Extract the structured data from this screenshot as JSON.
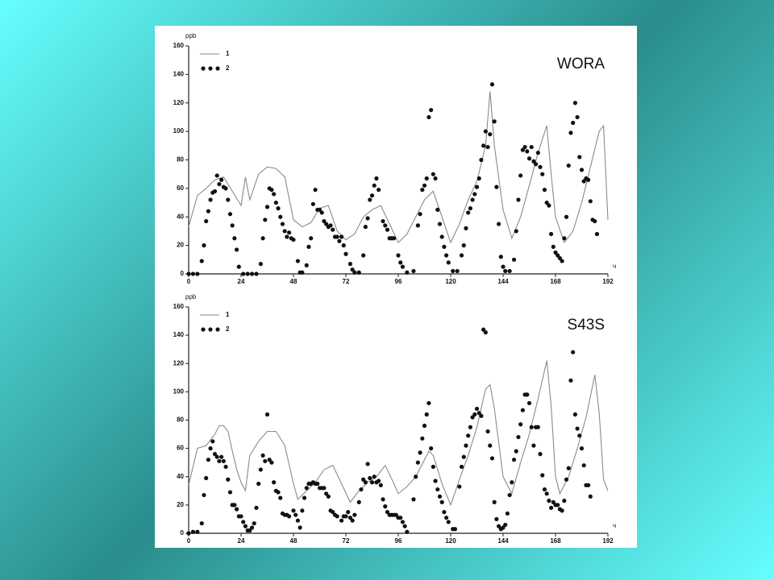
{
  "chart_data": [
    {
      "type": "line",
      "title": "WORA",
      "ylabel": "ppb",
      "xlabel": "ч",
      "xlim": [
        0,
        192
      ],
      "xticks": [
        0,
        24,
        48,
        72,
        96,
        120,
        144,
        168,
        192
      ],
      "ylim": [
        0,
        160
      ],
      "yticks": [
        0,
        20,
        40,
        60,
        80,
        100,
        120,
        140,
        160
      ],
      "series": [
        {
          "name": "1",
          "color": "#8a8a8a",
          "style": "line",
          "x": [
            0,
            4,
            8,
            12,
            16,
            20,
            24,
            26,
            28,
            32,
            36,
            40,
            44,
            48,
            52,
            56,
            60,
            64,
            68,
            72,
            76,
            80,
            84,
            88,
            92,
            96,
            100,
            104,
            108,
            112,
            116,
            120,
            124,
            128,
            132,
            136,
            138,
            140,
            144,
            148,
            152,
            156,
            160,
            164,
            166,
            168,
            172,
            176,
            180,
            184,
            188,
            190,
            192
          ],
          "values": [
            33,
            55,
            60,
            66,
            68,
            58,
            48,
            68,
            52,
            70,
            75,
            74,
            68,
            38,
            33,
            36,
            46,
            48,
            30,
            24,
            28,
            40,
            45,
            48,
            35,
            22,
            28,
            40,
            52,
            58,
            40,
            22,
            35,
            52,
            65,
            90,
            128,
            90,
            45,
            25,
            40,
            62,
            85,
            104,
            70,
            40,
            22,
            30,
            50,
            75,
            100,
            104,
            38
          ]
        },
        {
          "name": "2",
          "color": "#111111",
          "style": "dots",
          "x": [
            0,
            2,
            4,
            6,
            7,
            8,
            9,
            10,
            11,
            12,
            13,
            14,
            15,
            16,
            17,
            18,
            19,
            20,
            21,
            22,
            23,
            25,
            27,
            29,
            31,
            33,
            34,
            35,
            36,
            37,
            38,
            39,
            40,
            41,
            42,
            43,
            44,
            45,
            46,
            47,
            48,
            50,
            51,
            52,
            54,
            55,
            56,
            57,
            58,
            59,
            60,
            61,
            62,
            63,
            64,
            65,
            66,
            67,
            68,
            69,
            70,
            71,
            72,
            74,
            75,
            76,
            78,
            80,
            81,
            82,
            83,
            84,
            85,
            86,
            87,
            89,
            90,
            91,
            92,
            93,
            94,
            96,
            97,
            98,
            100,
            103,
            105,
            106,
            107,
            108,
            109,
            110,
            111,
            112,
            113,
            114,
            115,
            116,
            117,
            118,
            119,
            121,
            123,
            125,
            126,
            127,
            128,
            129,
            130,
            131,
            132,
            133,
            134,
            135,
            136,
            137,
            138,
            139,
            140,
            141,
            142,
            143,
            144,
            145,
            147,
            149,
            150,
            151,
            152,
            153,
            154,
            155,
            156,
            157,
            158,
            159,
            160,
            161,
            162,
            163,
            164,
            165,
            166,
            167,
            168,
            169,
            170,
            171,
            172,
            173,
            174,
            175,
            176,
            177,
            178,
            179,
            180,
            181,
            182,
            183,
            184,
            185,
            186,
            187
          ],
          "values": [
            0,
            0,
            0,
            9,
            20,
            37,
            44,
            52,
            57,
            58,
            69,
            63,
            66,
            61,
            60,
            52,
            42,
            34,
            25,
            17,
            5,
            0,
            0,
            0,
            0,
            7,
            25,
            38,
            47,
            60,
            59,
            56,
            50,
            46,
            40,
            35,
            30,
            26,
            29,
            25,
            24,
            9,
            1,
            1,
            6,
            19,
            25,
            49,
            59,
            45,
            45,
            43,
            37,
            35,
            33,
            34,
            31,
            26,
            26,
            23,
            26,
            20,
            14,
            7,
            3,
            1,
            1,
            13,
            33,
            39,
            52,
            55,
            62,
            67,
            59,
            37,
            34,
            31,
            25,
            25,
            25,
            13,
            8,
            5,
            1,
            2,
            34,
            42,
            59,
            62,
            67,
            110,
            115,
            70,
            67,
            45,
            35,
            26,
            19,
            13,
            8,
            2,
            2,
            13,
            20,
            32,
            43,
            46,
            52,
            56,
            61,
            67,
            80,
            90,
            100,
            89,
            98,
            133,
            107,
            61,
            35,
            12,
            5,
            2,
            2,
            10,
            30,
            52,
            69,
            87,
            89,
            86,
            81,
            89,
            79,
            77,
            85,
            75,
            70,
            59,
            50,
            48,
            28,
            19,
            15,
            13,
            11,
            9,
            25,
            40,
            76,
            99,
            106,
            120,
            110,
            82,
            73,
            65,
            67,
            66,
            51,
            38,
            37,
            28
          ]
        }
      ]
    },
    {
      "type": "line",
      "title": "S43S",
      "ylabel": "ppb",
      "xlabel": "ч",
      "xlim": [
        0,
        192
      ],
      "xticks": [
        0,
        24,
        48,
        72,
        96,
        120,
        144,
        168,
        192
      ],
      "ylim": [
        0,
        160
      ],
      "yticks": [
        0,
        20,
        40,
        60,
        80,
        100,
        120,
        140,
        160
      ],
      "series": [
        {
          "name": "1",
          "color": "#8a8a8a",
          "style": "line",
          "x": [
            0,
            4,
            8,
            12,
            14,
            16,
            18,
            20,
            22,
            24,
            26,
            28,
            32,
            36,
            40,
            44,
            48,
            50,
            54,
            58,
            62,
            66,
            70,
            74,
            78,
            82,
            86,
            90,
            94,
            96,
            100,
            104,
            108,
            110,
            112,
            116,
            120,
            124,
            128,
            132,
            136,
            138,
            140,
            144,
            148,
            152,
            156,
            160,
            164,
            166,
            168,
            170,
            174,
            178,
            182,
            186,
            188,
            190,
            192
          ],
          "values": [
            34,
            60,
            62,
            70,
            76,
            76,
            72,
            58,
            45,
            36,
            30,
            55,
            65,
            72,
            72,
            62,
            35,
            24,
            30,
            36,
            45,
            48,
            35,
            22,
            30,
            36,
            40,
            48,
            35,
            28,
            33,
            40,
            52,
            58,
            55,
            35,
            20,
            38,
            55,
            75,
            102,
            105,
            88,
            40,
            28,
            50,
            70,
            95,
            122,
            90,
            40,
            28,
            40,
            60,
            82,
            112,
            85,
            38,
            30
          ]
        },
        {
          "name": "2",
          "color": "#111111",
          "style": "dots",
          "x": [
            0,
            2,
            4,
            6,
            7,
            8,
            9,
            10,
            11,
            12,
            13,
            14,
            15,
            16,
            17,
            18,
            19,
            20,
            21,
            22,
            23,
            24,
            25,
            26,
            27,
            28,
            29,
            30,
            31,
            32,
            33,
            34,
            35,
            36,
            37,
            38,
            39,
            40,
            41,
            42,
            43,
            44,
            45,
            46,
            48,
            49,
            50,
            51,
            52,
            53,
            54,
            55,
            56,
            57,
            58,
            59,
            60,
            61,
            62,
            63,
            64,
            65,
            66,
            67,
            68,
            70,
            71,
            72,
            73,
            74,
            75,
            76,
            78,
            79,
            80,
            81,
            82,
            83,
            84,
            85,
            86,
            87,
            88,
            89,
            90,
            91,
            92,
            93,
            94,
            95,
            96,
            97,
            98,
            99,
            100,
            103,
            104,
            105,
            106,
            107,
            108,
            109,
            110,
            111,
            112,
            113,
            114,
            115,
            116,
            117,
            118,
            119,
            121,
            122,
            124,
            125,
            126,
            127,
            128,
            129,
            130,
            131,
            132,
            133,
            134,
            135,
            136,
            137,
            138,
            139,
            140,
            141,
            142,
            143,
            144,
            145,
            146,
            147,
            148,
            149,
            150,
            151,
            152,
            153,
            154,
            155,
            156,
            157,
            158,
            159,
            160,
            161,
            162,
            163,
            164,
            165,
            166,
            167,
            168,
            169,
            170,
            171,
            172,
            173,
            174,
            175,
            176,
            177,
            178,
            179,
            180,
            181,
            182,
            183,
            184
          ],
          "values": [
            0,
            1,
            1,
            7,
            27,
            39,
            52,
            60,
            65,
            56,
            54,
            51,
            54,
            51,
            47,
            38,
            29,
            20,
            20,
            17,
            12,
            12,
            8,
            5,
            2,
            2,
            4,
            7,
            18,
            35,
            45,
            55,
            51,
            84,
            52,
            50,
            36,
            30,
            29,
            25,
            14,
            13,
            13,
            12,
            16,
            13,
            9,
            4,
            16,
            25,
            32,
            35,
            35,
            36,
            35,
            35,
            32,
            32,
            32,
            28,
            26,
            16,
            15,
            13,
            12,
            9,
            12,
            12,
            15,
            11,
            9,
            13,
            22,
            31,
            38,
            36,
            49,
            39,
            36,
            40,
            36,
            37,
            34,
            24,
            19,
            15,
            13,
            13,
            13,
            13,
            11,
            11,
            8,
            5,
            1,
            24,
            40,
            50,
            57,
            67,
            76,
            84,
            92,
            60,
            47,
            37,
            31,
            26,
            22,
            15,
            11,
            8,
            3,
            3,
            33,
            47,
            54,
            62,
            69,
            75,
            82,
            84,
            88,
            85,
            83,
            144,
            142,
            72,
            62,
            53,
            22,
            10,
            5,
            3,
            4,
            6,
            14,
            27,
            36,
            52,
            58,
            68,
            77,
            87,
            98,
            98,
            92,
            75,
            62,
            75,
            75,
            56,
            41,
            31,
            28,
            23,
            18,
            22,
            20,
            20,
            17,
            16,
            23,
            38,
            46,
            108,
            128,
            84,
            74,
            69,
            60,
            48,
            34,
            34,
            26
          ]
        }
      ]
    }
  ]
}
